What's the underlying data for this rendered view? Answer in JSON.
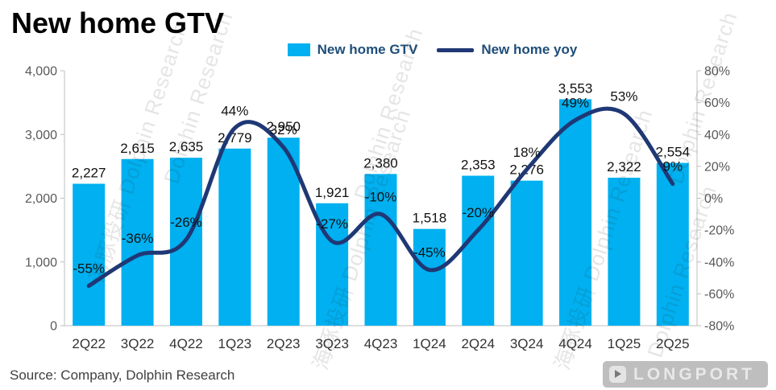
{
  "title": "New home GTV",
  "legend": [
    {
      "label": "New home GTV",
      "type": "bar"
    },
    {
      "label": "New home yoy",
      "type": "line"
    }
  ],
  "colors": {
    "bar": "#00b0f0",
    "line": "#1f3875",
    "legend_text": "#1f4e79",
    "axis": "#bfbfbf",
    "tick_label": "#595959",
    "category_label": "#333333",
    "data_label": "#111111"
  },
  "chart_data": {
    "type": "bar+line",
    "categories": [
      "2Q22",
      "3Q22",
      "4Q22",
      "1Q23",
      "2Q23",
      "3Q23",
      "4Q23",
      "1Q24",
      "2Q24",
      "3Q24",
      "4Q24",
      "1Q25",
      "2Q25"
    ],
    "series": [
      {
        "name": "New home GTV",
        "type": "bar",
        "axis": "left",
        "values": [
          2227,
          2615,
          2635,
          2779,
          2950,
          1921,
          2380,
          1518,
          2353,
          2276,
          3553,
          2322,
          2554
        ],
        "labels": [
          "2,227",
          "2,615",
          "2,635",
          "2,779",
          "2,950",
          "1,921",
          "2,380",
          "1,518",
          "2,353",
          "2,276",
          "3,553",
          "2,322",
          "2,554"
        ]
      },
      {
        "name": "New home yoy",
        "type": "line",
        "axis": "right",
        "values": [
          -55,
          -36,
          -26,
          44,
          32,
          -27,
          -10,
          -45,
          -20,
          18,
          49,
          53,
          9
        ],
        "labels": [
          "-55%",
          "-36%",
          "-26%",
          "44%",
          "32%",
          "-27%",
          "-10%",
          "-45%",
          "-20%",
          "18%",
          "49%",
          "53%",
          "9%"
        ]
      }
    ],
    "left_axis": {
      "min": 0,
      "max": 4000,
      "ticks": [
        "0",
        "1,000",
        "2,000",
        "3,000",
        "4,000"
      ]
    },
    "right_axis": {
      "min": -80,
      "max": 80,
      "ticks": [
        "-80%",
        "-60%",
        "-40%",
        "-20%",
        "0%",
        "20%",
        "40%",
        "60%",
        "80%"
      ]
    },
    "grid": false,
    "legend_position": "top"
  },
  "source": "Source: Company, Dolphin Research",
  "watermark": {
    "cn": "海豚投研",
    "en": "Dolphin Research",
    "full": "海豚投研 Dolphin Research"
  },
  "longport": {
    "label": "LONGPORT"
  }
}
